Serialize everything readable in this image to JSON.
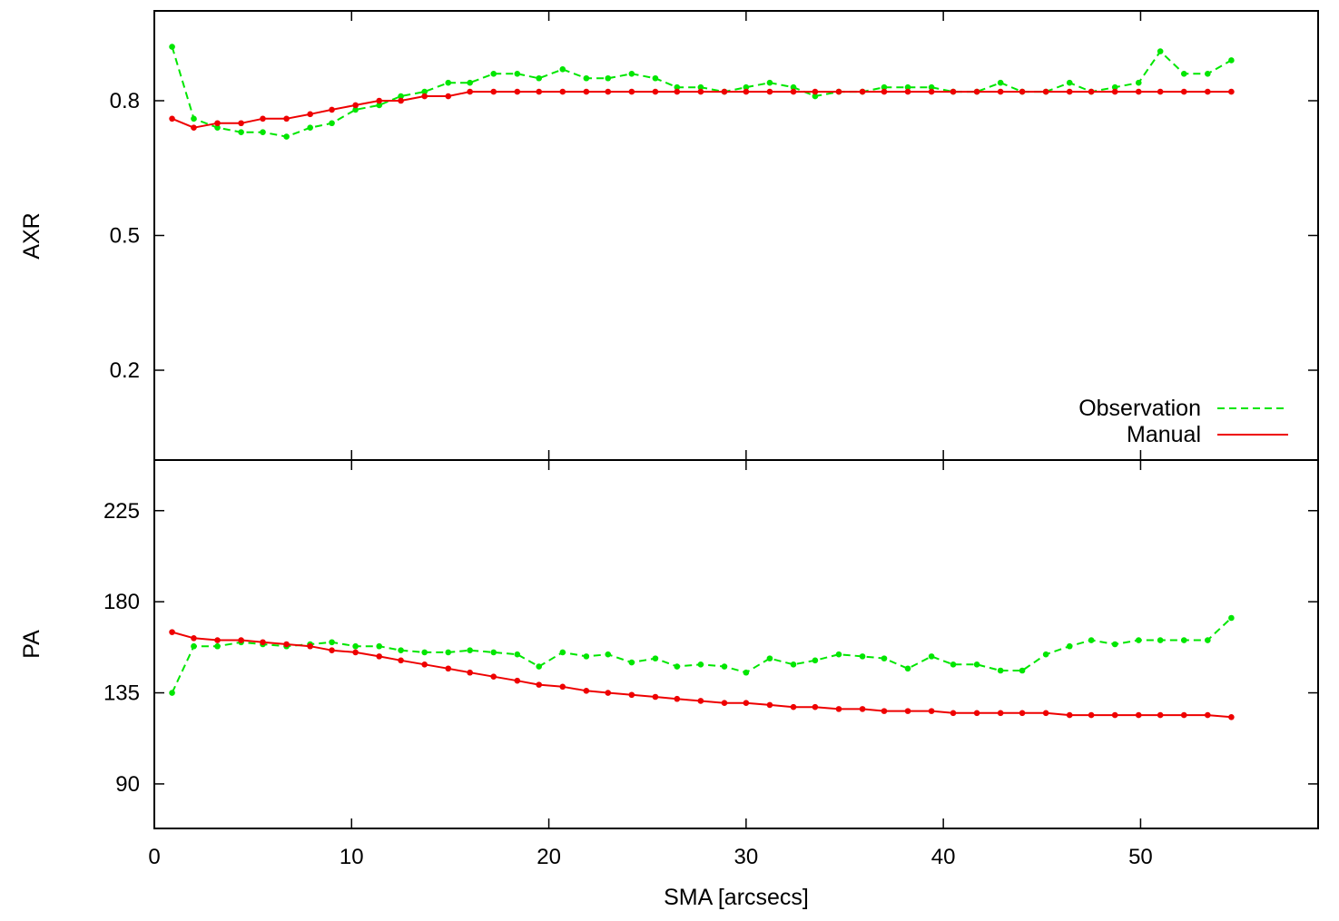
{
  "chart_data": [
    {
      "type": "line",
      "title": "",
      "xlabel": "",
      "ylabel": "AXR",
      "xlim": [
        0,
        59
      ],
      "ylim": [
        0,
        1
      ],
      "xticks": [
        0,
        10,
        20,
        30,
        40,
        50
      ],
      "yticks": [
        0.2,
        0.5,
        0.8
      ],
      "ytick_labels": [
        "0.2",
        "0.5",
        "0.8"
      ],
      "grid": false,
      "legend": "bottom-right",
      "series": [
        {
          "name": "Observation",
          "color": "#00e600",
          "style": "dashed",
          "markers": true,
          "x": [
            0.9,
            2.0,
            3.2,
            4.4,
            5.5,
            6.7,
            7.9,
            9.0,
            10.2,
            11.4,
            12.5,
            13.7,
            14.9,
            16.0,
            17.2,
            18.4,
            19.5,
            20.7,
            21.9,
            23.0,
            24.2,
            25.4,
            26.5,
            27.7,
            28.9,
            30.0,
            31.2,
            32.4,
            33.5,
            34.7,
            35.9,
            37.0,
            38.2,
            39.4,
            40.5,
            41.7,
            42.9,
            44.0,
            45.2,
            46.4,
            47.5,
            48.7,
            49.9,
            51.0,
            52.2,
            53.4,
            54.6
          ],
          "y": [
            0.92,
            0.76,
            0.74,
            0.73,
            0.73,
            0.72,
            0.74,
            0.75,
            0.78,
            0.79,
            0.81,
            0.82,
            0.84,
            0.84,
            0.86,
            0.86,
            0.85,
            0.87,
            0.85,
            0.85,
            0.86,
            0.85,
            0.83,
            0.83,
            0.82,
            0.83,
            0.84,
            0.83,
            0.81,
            0.82,
            0.82,
            0.83,
            0.83,
            0.83,
            0.82,
            0.82,
            0.84,
            0.82,
            0.82,
            0.84,
            0.82,
            0.83,
            0.84,
            0.91,
            0.86,
            0.86,
            0.89
          ]
        },
        {
          "name": "Manual",
          "color": "#ee0000",
          "style": "solid",
          "markers": true,
          "x": [
            0.9,
            2.0,
            3.2,
            4.4,
            5.5,
            6.7,
            7.9,
            9.0,
            10.2,
            11.4,
            12.5,
            13.7,
            14.9,
            16.0,
            17.2,
            18.4,
            19.5,
            20.7,
            21.9,
            23.0,
            24.2,
            25.4,
            26.5,
            27.7,
            28.9,
            30.0,
            31.2,
            32.4,
            33.5,
            34.7,
            35.9,
            37.0,
            38.2,
            39.4,
            40.5,
            41.7,
            42.9,
            44.0,
            45.2,
            46.4,
            47.5,
            48.7,
            49.9,
            51.0,
            52.2,
            53.4,
            54.6
          ],
          "y": [
            0.76,
            0.74,
            0.75,
            0.75,
            0.76,
            0.76,
            0.77,
            0.78,
            0.79,
            0.8,
            0.8,
            0.81,
            0.81,
            0.82,
            0.82,
            0.82,
            0.82,
            0.82,
            0.82,
            0.82,
            0.82,
            0.82,
            0.82,
            0.82,
            0.82,
            0.82,
            0.82,
            0.82,
            0.82,
            0.82,
            0.82,
            0.82,
            0.82,
            0.82,
            0.82,
            0.82,
            0.82,
            0.82,
            0.82,
            0.82,
            0.82,
            0.82,
            0.82,
            0.82,
            0.82,
            0.82,
            0.82
          ]
        }
      ]
    },
    {
      "type": "line",
      "title": "",
      "xlabel": "SMA [arcsecs]",
      "ylabel": "PA",
      "xlim": [
        0,
        59
      ],
      "ylim": [
        68,
        250
      ],
      "xticks": [
        0,
        10,
        20,
        30,
        40,
        50
      ],
      "yticks": [
        90,
        135,
        180,
        225
      ],
      "ytick_labels": [
        "90",
        "135",
        "180",
        "225"
      ],
      "grid": false,
      "series": [
        {
          "name": "Observation",
          "color": "#00e600",
          "style": "dashed",
          "markers": true,
          "x": [
            0.9,
            2.0,
            3.2,
            4.4,
            5.5,
            6.7,
            7.9,
            9.0,
            10.2,
            11.4,
            12.5,
            13.7,
            14.9,
            16.0,
            17.2,
            18.4,
            19.5,
            20.7,
            21.9,
            23.0,
            24.2,
            25.4,
            26.5,
            27.7,
            28.9,
            30.0,
            31.2,
            32.4,
            33.5,
            34.7,
            35.9,
            37.0,
            38.2,
            39.4,
            40.5,
            41.7,
            42.9,
            44.0,
            45.2,
            46.4,
            47.5,
            48.7,
            49.9,
            51.0,
            52.2,
            53.4,
            54.6
          ],
          "y": [
            135,
            158,
            158,
            160,
            159,
            158,
            159,
            160,
            158,
            158,
            156,
            155,
            155,
            156,
            155,
            154,
            148,
            155,
            153,
            154,
            150,
            152,
            148,
            149,
            148,
            145,
            152,
            149,
            151,
            154,
            153,
            152,
            147,
            153,
            149,
            149,
            146,
            146,
            154,
            158,
            161,
            159,
            161,
            161,
            161,
            161,
            172
          ]
        },
        {
          "name": "Manual",
          "color": "#ee0000",
          "style": "solid",
          "markers": true,
          "x": [
            0.9,
            2.0,
            3.2,
            4.4,
            5.5,
            6.7,
            7.9,
            9.0,
            10.2,
            11.4,
            12.5,
            13.7,
            14.9,
            16.0,
            17.2,
            18.4,
            19.5,
            20.7,
            21.9,
            23.0,
            24.2,
            25.4,
            26.5,
            27.7,
            28.9,
            30.0,
            31.2,
            32.4,
            33.5,
            34.7,
            35.9,
            37.0,
            38.2,
            39.4,
            40.5,
            41.7,
            42.9,
            44.0,
            45.2,
            46.4,
            47.5,
            48.7,
            49.9,
            51.0,
            52.2,
            53.4,
            54.6
          ],
          "y": [
            165,
            162,
            161,
            161,
            160,
            159,
            158,
            156,
            155,
            153,
            151,
            149,
            147,
            145,
            143,
            141,
            139,
            138,
            136,
            135,
            134,
            133,
            132,
            131,
            130,
            130,
            129,
            128,
            128,
            127,
            127,
            126,
            126,
            126,
            125,
            125,
            125,
            125,
            125,
            124,
            124,
            124,
            124,
            124,
            124,
            124,
            123
          ]
        }
      ]
    }
  ]
}
